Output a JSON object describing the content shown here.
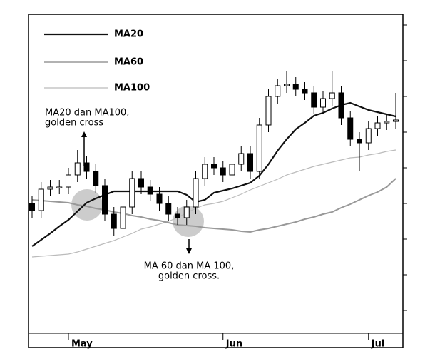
{
  "chart_data": {
    "type": "candlestick",
    "categories": [
      null,
      null,
      null,
      null,
      "May",
      null,
      null,
      null,
      null,
      null,
      null,
      null,
      null,
      null,
      null,
      null,
      null,
      null,
      null,
      null,
      null,
      "Jun",
      null,
      null,
      null,
      null,
      null,
      null,
      null,
      null,
      null,
      null,
      null,
      null,
      null,
      null,
      null,
      "Jul",
      null,
      null,
      null
    ],
    "open": [
      3.0,
      2.8,
      3.4,
      3.46,
      3.46,
      3.8,
      4.14,
      3.9,
      3.5,
      2.7,
      2.3,
      2.9,
      3.7,
      3.46,
      3.26,
      3.0,
      2.7,
      2.6,
      2.9,
      3.7,
      4.1,
      4.0,
      3.8,
      4.1,
      4.4,
      3.9,
      5.2,
      6.0,
      6.3,
      6.34,
      6.2,
      6.1,
      5.7,
      5.94,
      6.1,
      5.4,
      4.8,
      4.7,
      5.1,
      5.26,
      5.3
    ],
    "high": [
      3.2,
      3.6,
      3.66,
      3.66,
      4.0,
      4.5,
      4.34,
      4.1,
      3.7,
      2.9,
      3.1,
      3.9,
      3.9,
      3.66,
      3.46,
      3.2,
      2.9,
      3.1,
      3.9,
      4.3,
      4.3,
      4.2,
      4.3,
      4.6,
      4.6,
      5.4,
      6.2,
      6.5,
      6.7,
      6.54,
      6.4,
      6.3,
      6.14,
      6.7,
      6.3,
      5.6,
      5.0,
      5.3,
      5.46,
      5.5,
      6.1
    ],
    "low": [
      2.6,
      2.6,
      3.2,
      3.26,
      3.26,
      3.6,
      3.7,
      3.3,
      2.5,
      2.1,
      2.1,
      2.7,
      3.26,
      3.06,
      2.8,
      2.5,
      2.4,
      2.4,
      2.7,
      3.5,
      3.8,
      3.6,
      3.6,
      3.9,
      3.7,
      3.7,
      5.0,
      5.8,
      6.1,
      6.0,
      5.9,
      5.5,
      5.5,
      5.74,
      5.2,
      4.6,
      3.9,
      4.5,
      4.9,
      5.06,
      5.1
    ],
    "close": [
      2.8,
      3.4,
      3.46,
      3.46,
      3.8,
      4.14,
      3.9,
      3.5,
      2.7,
      2.3,
      2.9,
      3.7,
      3.46,
      3.26,
      3.0,
      2.7,
      2.6,
      2.9,
      3.7,
      4.1,
      4.0,
      3.8,
      4.1,
      4.4,
      3.9,
      5.2,
      6.0,
      6.3,
      6.34,
      6.2,
      6.1,
      5.7,
      5.94,
      6.1,
      5.4,
      4.8,
      4.7,
      5.1,
      5.26,
      5.3,
      5.34
    ],
    "up_color": "#ffffff",
    "down_color": "#000000",
    "series": [
      {
        "name": "MA20",
        "color": "#111111",
        "values": [
          1.8,
          1.98,
          2.16,
          2.36,
          2.54,
          2.78,
          3.02,
          3.14,
          3.24,
          3.34,
          3.34,
          3.34,
          3.34,
          3.34,
          3.34,
          3.34,
          3.34,
          3.24,
          3.04,
          3.1,
          3.3,
          3.36,
          3.42,
          3.5,
          3.58,
          3.78,
          4.1,
          4.48,
          4.8,
          5.08,
          5.26,
          5.46,
          5.54,
          5.66,
          5.76,
          5.82,
          5.72,
          5.62,
          5.56,
          5.5,
          5.44
        ]
      },
      {
        "name": "MA60",
        "color": "#999999",
        "values": [
          3.1,
          3.08,
          3.06,
          3.04,
          3.02,
          2.96,
          2.92,
          2.86,
          2.82,
          2.76,
          2.72,
          2.66,
          2.62,
          2.56,
          2.52,
          2.46,
          2.4,
          2.38,
          2.36,
          2.32,
          2.3,
          2.28,
          2.26,
          2.22,
          2.2,
          2.26,
          2.3,
          2.36,
          2.42,
          2.48,
          2.56,
          2.62,
          2.7,
          2.76,
          2.88,
          2.98,
          3.1,
          3.22,
          3.32,
          3.46,
          3.7
        ]
      },
      {
        "name": "MA100",
        "color": "#bbbbbb",
        "values": [
          1.5,
          1.52,
          1.54,
          1.56,
          1.58,
          1.64,
          1.72,
          1.8,
          1.88,
          1.96,
          2.06,
          2.16,
          2.28,
          2.34,
          2.42,
          2.5,
          2.6,
          2.74,
          2.86,
          2.96,
          3.0,
          3.06,
          3.16,
          3.26,
          3.38,
          3.48,
          3.58,
          3.68,
          3.8,
          3.88,
          3.96,
          4.04,
          4.1,
          4.16,
          4.22,
          4.28,
          4.3,
          4.36,
          4.4,
          4.46,
          4.5
        ]
      }
    ],
    "ylim": [
      -0.6,
      8.3
    ],
    "yticks": [
      0,
      1,
      2,
      3,
      4,
      5,
      6,
      7,
      8
    ],
    "legend": "top-left",
    "annotations": [
      {
        "lines": [
          "MA20 dan MA100,",
          "golden cross"
        ]
      },
      {
        "lines": [
          "MA 60 dan MA 100,",
          "golden cross."
        ]
      }
    ]
  }
}
